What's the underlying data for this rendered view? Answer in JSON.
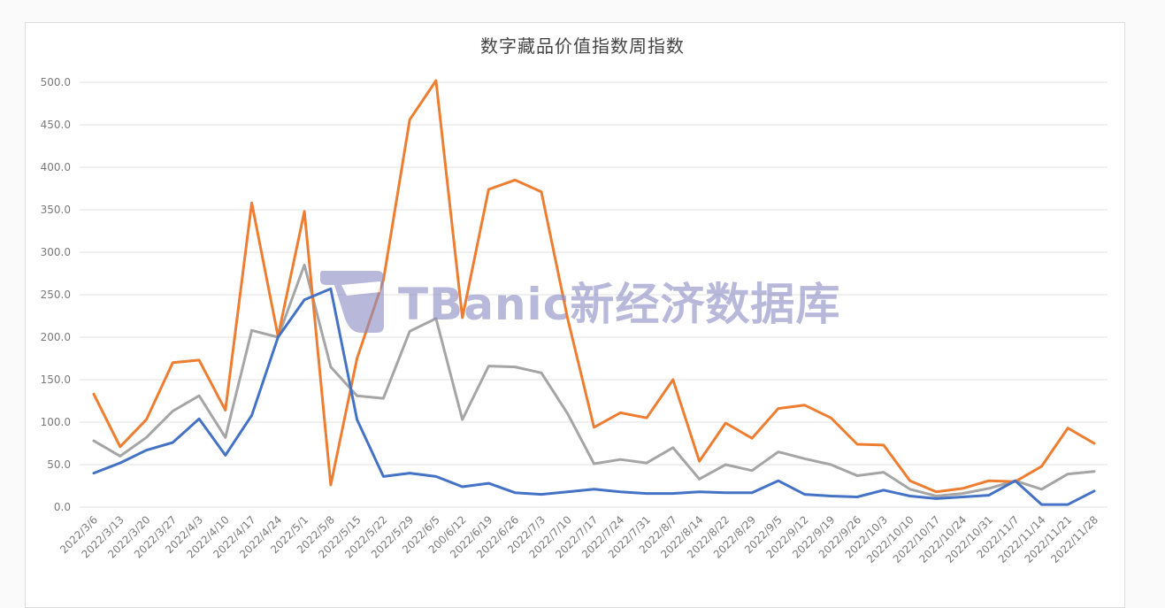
{
  "chart_data": {
    "type": "line",
    "title": "数字藏品价值指数周指数",
    "xlabel": "",
    "ylabel": "",
    "ylim": [
      0,
      500
    ],
    "y_ticks": [
      "0.0",
      "50.0",
      "100.0",
      "150.0",
      "200.0",
      "250.0",
      "300.0",
      "350.0",
      "400.0",
      "450.0",
      "500.0"
    ],
    "grid": true,
    "legend": "none",
    "x": [
      "2022/3/6",
      "2022/3/13",
      "2022/3/20",
      "2022/3/27",
      "2022/4/3",
      "2022/4/10",
      "2022/4/17",
      "2022/4/24",
      "2022/5/1",
      "2022/5/8",
      "2022/5/15",
      "2022/5/22",
      "2022/5/29",
      "2022/6/5",
      "200/6/12",
      "2022/6/19",
      "2022/6/26",
      "2022/7/3",
      "2022/7/10",
      "2022/7/17",
      "2022/7/24",
      "2022/7/31",
      "2022/8/7",
      "2022/8/14",
      "2022/8/22",
      "2022/8/29",
      "2022/9/5",
      "2022/9/12",
      "2022/9/19",
      "2022/9/26",
      "2022/10/3",
      "2022/10/10",
      "2022/10/17",
      "2022/10/24",
      "2022/10/31",
      "2022/11/7",
      "2022/11/14",
      "2022/11/21",
      "2022/11/28"
    ],
    "series": [
      {
        "name": "blue-series",
        "color": "#4472c4",
        "values": [
          40,
          52,
          67,
          76,
          104,
          61,
          108,
          200,
          244,
          257,
          103,
          36,
          40,
          36,
          24,
          28,
          17,
          15,
          18,
          21,
          18,
          16,
          16,
          18,
          17,
          17,
          31,
          15,
          13,
          12,
          20,
          13,
          10,
          12,
          14,
          31,
          3,
          3,
          19
        ]
      },
      {
        "name": "orange-series",
        "color": "#ed7d31",
        "values": [
          133,
          71,
          103,
          170,
          173,
          114,
          358,
          201,
          348,
          26,
          175,
          267,
          456,
          502,
          223,
          374,
          385,
          371,
          222,
          94,
          111,
          105,
          150,
          54,
          99,
          81,
          116,
          120,
          105,
          74,
          73,
          31,
          18,
          22,
          31,
          30,
          48,
          93,
          75
        ]
      },
      {
        "name": "gray-series",
        "color": "#a5a5a5",
        "values": [
          78,
          60,
          82,
          113,
          131,
          82,
          208,
          200,
          285,
          165,
          131,
          128,
          207,
          222,
          103,
          166,
          165,
          158,
          110,
          51,
          56,
          52,
          70,
          33,
          50,
          43,
          65,
          57,
          50,
          37,
          41,
          21,
          13,
          16,
          22,
          31,
          21,
          39,
          42
        ]
      }
    ]
  },
  "watermark": {
    "text": "TBanic新经济数据库"
  }
}
